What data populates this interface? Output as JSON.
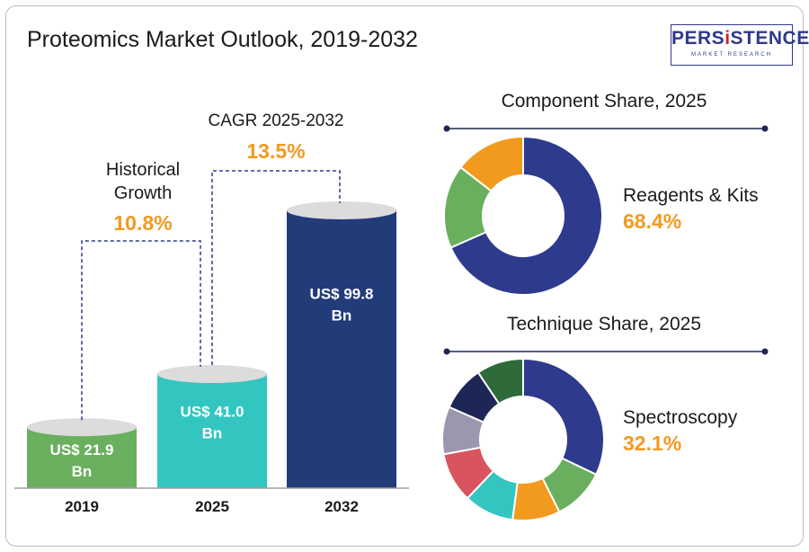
{
  "title": "Proteomics Market Outlook, 2019-2032",
  "logo": {
    "brand_pre": "PERS",
    "brand_mid": "i",
    "brand_post": "STENCE",
    "tagline": "MARKET RESEARCH"
  },
  "colors": {
    "bar_2019": "#6aaf5e",
    "bar_2025": "#33c6c1",
    "bar_2032": "#223c7a",
    "accent": "#f29a1e",
    "dashes": "#2e3a8c"
  },
  "chart_data": [
    {
      "type": "bar",
      "categories": [
        "2019",
        "2025",
        "2032"
      ],
      "values": [
        21.9,
        41.0,
        99.8
      ],
      "value_labels": [
        [
          "US$ 21.9",
          "Bn"
        ],
        [
          "US$ 41.0",
          "Bn"
        ],
        [
          "US$ 99.8",
          "Bn"
        ]
      ],
      "annotations": [
        {
          "label_lines": [
            "Historical",
            "Growth"
          ],
          "value": "10.8%"
        },
        {
          "label_lines": [
            "CAGR 2025-2032"
          ],
          "value": "13.5%"
        }
      ]
    },
    {
      "type": "pie",
      "title": "Component Share, 2025",
      "slices": [
        {
          "value": 68.4,
          "color": "#2e3a8c"
        },
        {
          "value": 17.1,
          "color": "#6aaf5e"
        },
        {
          "value": 14.5,
          "color": "#f29a1e"
        }
      ],
      "highlight": {
        "label": "Reagents & Kits",
        "value": "68.4%"
      }
    },
    {
      "type": "pie",
      "title": "Technique Share, 2025",
      "slices": [
        {
          "value": 32.1,
          "color": "#2e3a8c"
        },
        {
          "value": 10.5,
          "color": "#6aaf5e"
        },
        {
          "value": 9.5,
          "color": "#f29a1e"
        },
        {
          "value": 10.0,
          "color": "#33c6c1"
        },
        {
          "value": 10.0,
          "color": "#d9545e"
        },
        {
          "value": 9.5,
          "color": "#9b97ae"
        },
        {
          "value": 9.0,
          "color": "#1e2655"
        },
        {
          "value": 9.4,
          "color": "#2f6a3b"
        }
      ],
      "highlight": {
        "label": "Spectroscopy",
        "value": "32.1%"
      }
    }
  ]
}
